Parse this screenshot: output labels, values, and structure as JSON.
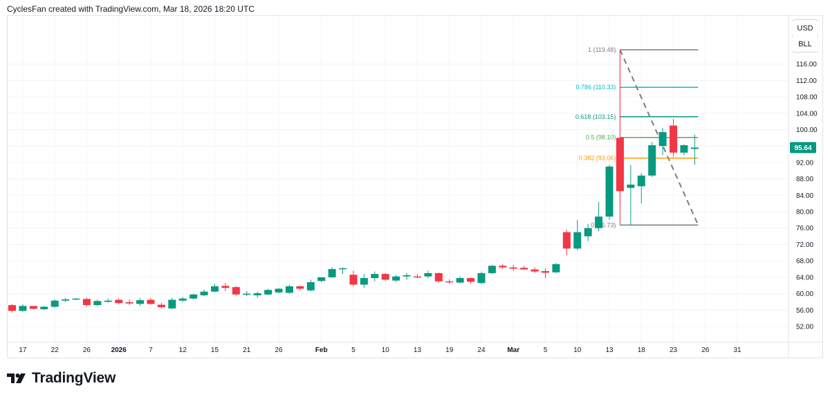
{
  "header": {
    "text": "CyclesFan created with TradingView.com, Mar 18, 2026 18:20 UTC"
  },
  "currency": {
    "usd": "USD",
    "symbol": "BLL"
  },
  "brand": {
    "name": "TradingView"
  },
  "colors": {
    "up": "#089981",
    "down": "#f23645",
    "grid": "#f0f3fa",
    "price_tag": "#089981",
    "fib_1": "#787b86",
    "fib_0786": "#00bcd4",
    "fib_0618": "#089981",
    "fib_05": "#4caf50",
    "fib_0382": "#ff9800",
    "fib_0": "#787b86",
    "fib_vertical": "#f23645",
    "trend_dashed": "#787b86"
  },
  "chart_data": {
    "type": "candlestick",
    "title": "",
    "y_axis": {
      "ylim": [
        48,
        124
      ],
      "ticks": [
        52,
        56,
        60,
        64,
        68,
        72,
        76,
        80,
        84,
        88,
        92,
        96,
        100,
        104,
        108,
        112,
        116
      ]
    },
    "y_tick_labels": [
      "52.00",
      "56.00",
      "60.00",
      "64.00",
      "68.00",
      "72.00",
      "76.00",
      "80.00",
      "84.00",
      "88.00",
      "92.00",
      "96.00",
      "100.00",
      "104.00",
      "108.00",
      "112.00",
      "116.00"
    ],
    "x_tick_labels": [
      {
        "label": "17",
        "idx": 1
      },
      {
        "label": "22",
        "idx": 4
      },
      {
        "label": "26",
        "idx": 7
      },
      {
        "label": "2026",
        "idx": 10
      },
      {
        "label": "7",
        "idx": 13
      },
      {
        "label": "12",
        "idx": 16
      },
      {
        "label": "15",
        "idx": 19
      },
      {
        "label": "21",
        "idx": 22
      },
      {
        "label": "26",
        "idx": 25
      },
      {
        "label": "Feb",
        "idx": 29
      },
      {
        "label": "5",
        "idx": 32
      },
      {
        "label": "10",
        "idx": 35
      },
      {
        "label": "13",
        "idx": 38
      },
      {
        "label": "19",
        "idx": 41
      },
      {
        "label": "24",
        "idx": 44
      },
      {
        "label": "Mar",
        "idx": 47
      },
      {
        "label": "5",
        "idx": 50
      },
      {
        "label": "10",
        "idx": 53
      },
      {
        "label": "13",
        "idx": 56
      },
      {
        "label": "18",
        "idx": 59
      },
      {
        "label": "23",
        "idx": 62
      },
      {
        "label": "26",
        "idx": 65
      },
      {
        "label": "31",
        "idx": 68
      }
    ],
    "last_price": "95.64",
    "candles": [
      {
        "o": 57.2,
        "h": 57.4,
        "l": 55.4,
        "c": 55.8
      },
      {
        "o": 55.8,
        "h": 57.4,
        "l": 55.6,
        "c": 57.0
      },
      {
        "o": 57.0,
        "h": 57.0,
        "l": 56.2,
        "c": 56.3
      },
      {
        "o": 56.2,
        "h": 57.0,
        "l": 56.0,
        "c": 56.8
      },
      {
        "o": 56.8,
        "h": 58.6,
        "l": 56.6,
        "c": 58.3
      },
      {
        "o": 58.3,
        "h": 58.9,
        "l": 58.0,
        "c": 58.6
      },
      {
        "o": 58.6,
        "h": 58.9,
        "l": 58.4,
        "c": 58.8
      },
      {
        "o": 58.7,
        "h": 59.0,
        "l": 56.8,
        "c": 57.2
      },
      {
        "o": 57.2,
        "h": 58.6,
        "l": 57.0,
        "c": 58.2
      },
      {
        "o": 58.0,
        "h": 58.8,
        "l": 57.8,
        "c": 58.3
      },
      {
        "o": 58.5,
        "h": 58.8,
        "l": 57.4,
        "c": 57.7
      },
      {
        "o": 57.9,
        "h": 58.6,
        "l": 57.2,
        "c": 57.6
      },
      {
        "o": 57.5,
        "h": 58.9,
        "l": 57.0,
        "c": 58.4
      },
      {
        "o": 58.5,
        "h": 59.0,
        "l": 57.3,
        "c": 57.5
      },
      {
        "o": 57.3,
        "h": 57.8,
        "l": 56.4,
        "c": 56.7
      },
      {
        "o": 56.4,
        "h": 59.0,
        "l": 56.2,
        "c": 58.5
      },
      {
        "o": 58.3,
        "h": 59.2,
        "l": 58.0,
        "c": 58.8
      },
      {
        "o": 58.8,
        "h": 60.0,
        "l": 58.6,
        "c": 59.8
      },
      {
        "o": 59.6,
        "h": 61.0,
        "l": 59.4,
        "c": 60.5
      },
      {
        "o": 60.5,
        "h": 62.4,
        "l": 60.3,
        "c": 61.8
      },
      {
        "o": 61.9,
        "h": 62.6,
        "l": 60.6,
        "c": 61.4
      },
      {
        "o": 61.6,
        "h": 61.9,
        "l": 59.5,
        "c": 59.8
      },
      {
        "o": 59.8,
        "h": 60.6,
        "l": 59.4,
        "c": 60.0
      },
      {
        "o": 59.6,
        "h": 60.5,
        "l": 59.0,
        "c": 60.1
      },
      {
        "o": 59.8,
        "h": 61.2,
        "l": 59.6,
        "c": 60.9
      },
      {
        "o": 60.3,
        "h": 61.4,
        "l": 60.1,
        "c": 61.2
      },
      {
        "o": 60.2,
        "h": 62.2,
        "l": 60.0,
        "c": 61.8
      },
      {
        "o": 61.8,
        "h": 62.0,
        "l": 60.8,
        "c": 61.2
      },
      {
        "o": 60.8,
        "h": 63.4,
        "l": 60.6,
        "c": 62.8
      },
      {
        "o": 63.1,
        "h": 64.0,
        "l": 62.8,
        "c": 64.0
      },
      {
        "o": 64.0,
        "h": 66.4,
        "l": 63.8,
        "c": 66.0
      },
      {
        "o": 66.0,
        "h": 66.4,
        "l": 64.8,
        "c": 66.2
      },
      {
        "o": 64.6,
        "h": 65.6,
        "l": 61.8,
        "c": 62.2
      },
      {
        "o": 62.2,
        "h": 64.8,
        "l": 61.4,
        "c": 63.8
      },
      {
        "o": 63.8,
        "h": 65.4,
        "l": 63.0,
        "c": 64.8
      },
      {
        "o": 64.8,
        "h": 65.0,
        "l": 63.1,
        "c": 63.4
      },
      {
        "o": 63.2,
        "h": 64.6,
        "l": 62.8,
        "c": 64.2
      },
      {
        "o": 64.2,
        "h": 65.0,
        "l": 63.4,
        "c": 64.5
      },
      {
        "o": 64.2,
        "h": 64.8,
        "l": 63.8,
        "c": 64.1
      },
      {
        "o": 64.2,
        "h": 65.6,
        "l": 63.8,
        "c": 65.0
      },
      {
        "o": 65.0,
        "h": 65.2,
        "l": 62.6,
        "c": 63.0
      },
      {
        "o": 63.0,
        "h": 63.5,
        "l": 62.4,
        "c": 62.9
      },
      {
        "o": 62.7,
        "h": 64.2,
        "l": 62.5,
        "c": 63.8
      },
      {
        "o": 63.8,
        "h": 63.9,
        "l": 62.4,
        "c": 62.9
      },
      {
        "o": 62.6,
        "h": 65.4,
        "l": 62.3,
        "c": 65.0
      },
      {
        "o": 65.0,
        "h": 67.0,
        "l": 64.8,
        "c": 66.8
      },
      {
        "o": 66.8,
        "h": 67.2,
        "l": 66.0,
        "c": 66.4
      },
      {
        "o": 66.4,
        "h": 67.0,
        "l": 65.6,
        "c": 66.1
      },
      {
        "o": 66.3,
        "h": 66.8,
        "l": 65.8,
        "c": 65.9
      },
      {
        "o": 65.9,
        "h": 66.4,
        "l": 65.0,
        "c": 65.4
      },
      {
        "o": 65.5,
        "h": 66.2,
        "l": 63.8,
        "c": 65.1
      },
      {
        "o": 65.2,
        "h": 67.5,
        "l": 65.0,
        "c": 67.2
      },
      {
        "o": 75.0,
        "h": 75.6,
        "l": 69.4,
        "c": 71.0
      },
      {
        "o": 71.0,
        "h": 78.0,
        "l": 70.6,
        "c": 75.0
      },
      {
        "o": 74.0,
        "h": 77.0,
        "l": 72.8,
        "c": 76.0
      },
      {
        "o": 76.0,
        "h": 82.4,
        "l": 75.2,
        "c": 78.8
      },
      {
        "o": 78.8,
        "h": 91.4,
        "l": 78.0,
        "c": 91.0
      },
      {
        "o": 98.0,
        "h": 119.48,
        "l": 81.8,
        "c": 85.0
      },
      {
        "o": 85.8,
        "h": 91.4,
        "l": 76.73,
        "c": 86.6
      },
      {
        "o": 86.2,
        "h": 89.4,
        "l": 82.0,
        "c": 88.8
      },
      {
        "o": 88.8,
        "h": 97.0,
        "l": 88.4,
        "c": 96.2
      },
      {
        "o": 96.0,
        "h": 100.4,
        "l": 93.8,
        "c": 99.4
      },
      {
        "o": 101.0,
        "h": 102.6,
        "l": 93.4,
        "c": 94.4
      },
      {
        "o": 94.4,
        "h": 96.4,
        "l": 93.8,
        "c": 96.2
      },
      {
        "o": 95.3,
        "h": 98.8,
        "l": 91.4,
        "c": 95.64
      }
    ],
    "fibonacci": {
      "from_idx": 57,
      "to_idx": 64,
      "levels": [
        {
          "ratio": 1,
          "price": 119.48,
          "label": "1 (119.48)",
          "color_key": "fib_1"
        },
        {
          "ratio": 0.786,
          "price": 110.33,
          "label": "0.786 (110.33)",
          "color_key": "fib_0786"
        },
        {
          "ratio": 0.618,
          "price": 103.15,
          "label": "0.618 (103.15)",
          "color_key": "fib_0618"
        },
        {
          "ratio": 0.5,
          "price": 98.1,
          "label": "0.5 (98.10)",
          "color_key": "fib_05"
        },
        {
          "ratio": 0.382,
          "price": 93.06,
          "label": "0.382 (93.06)",
          "color_key": "fib_0382"
        },
        {
          "ratio": 0,
          "price": 76.73,
          "label": "0 (76.73)",
          "color_key": "fib_0"
        }
      ]
    }
  }
}
